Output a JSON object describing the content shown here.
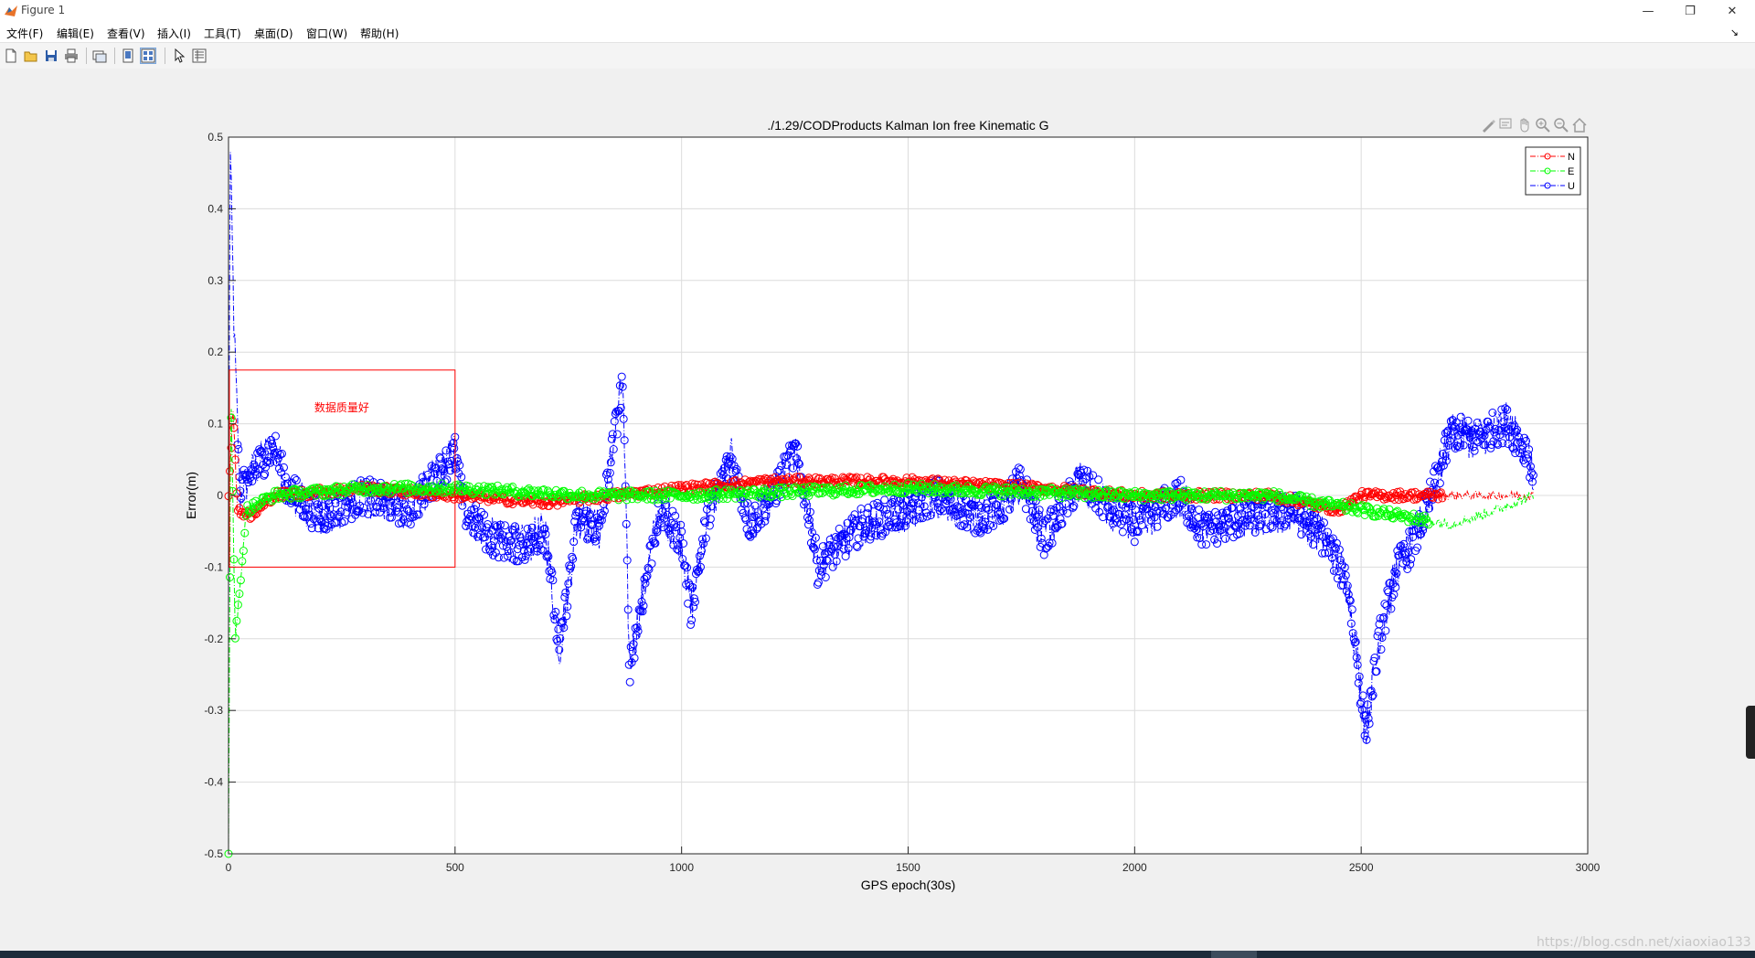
{
  "window": {
    "title": "Figure 1",
    "controls": {
      "minimize": "—",
      "restore": "❐",
      "close": "✕"
    }
  },
  "menu": {
    "items": [
      "文件(F)",
      "编辑(E)",
      "查看(V)",
      "插入(I)",
      "工具(T)",
      "桌面(D)",
      "窗口(W)",
      "帮助(H)"
    ],
    "dock_arrow": "↘"
  },
  "toolbar": {
    "buttons": [
      "new-figure-icon",
      "open-file-icon",
      "save-icon",
      "print-icon",
      "link-plot-icon",
      "hide-plot-tools-icon",
      "show-plot-tools-icon",
      "edit-plot-arrow-icon",
      "property-inspector-icon"
    ]
  },
  "axes_toolbar": {
    "buttons": [
      "brush-icon",
      "data-tips-icon",
      "pan-hand-icon",
      "zoom-in-icon",
      "zoom-out-icon",
      "home-icon"
    ]
  },
  "colors": {
    "N": "#ff0000",
    "E": "#00ff00",
    "U": "#0000ff",
    "annotation": "#ff0000",
    "grid": "#dcdcdc"
  },
  "chart_data": {
    "type": "line",
    "title": "./1.29/CODProducts Kalman Ion free Kinematic G",
    "xlabel": "GPS epoch(30s)",
    "ylabel": "Error(m)",
    "xlim": [
      0,
      3000
    ],
    "ylim": [
      -0.5,
      0.5
    ],
    "xticks": [
      0,
      500,
      1000,
      1500,
      2000,
      2500,
      3000
    ],
    "yticks": [
      -0.5,
      -0.4,
      -0.3,
      -0.2,
      -0.1,
      0,
      0.1,
      0.2,
      0.3,
      0.4,
      0.5
    ],
    "xtick_labels": [
      "0",
      "500",
      "1000",
      "1500",
      "2000",
      "2500",
      "3000"
    ],
    "ytick_labels": [
      "-0.5",
      "-0.4",
      "-0.3",
      "-0.2",
      "-0.1",
      "0",
      "0.1",
      "0.2",
      "0.3",
      "0.4",
      "0.5"
    ],
    "grid": true,
    "legend_position": "top-right",
    "legend": [
      "N",
      "E",
      "U"
    ],
    "series": [
      {
        "name": "N",
        "marker": "circle",
        "line": "dash-dot",
        "envelope": [
          [
            0,
            0
          ],
          [
            10,
            0.12
          ],
          [
            20,
            -0.02
          ],
          [
            50,
            -0.03
          ],
          [
            100,
            0.0
          ],
          [
            300,
            0.01
          ],
          [
            500,
            0.0
          ],
          [
            700,
            -0.01
          ],
          [
            1000,
            0.01
          ],
          [
            1200,
            0.02
          ],
          [
            1500,
            0.02
          ],
          [
            1800,
            0.01
          ],
          [
            2000,
            0.0
          ],
          [
            2300,
            0.0
          ],
          [
            2450,
            -0.02
          ],
          [
            2500,
            0.0
          ],
          [
            2600,
            0.0
          ],
          [
            2700,
            0.0
          ],
          [
            2800,
            0.0
          ],
          [
            2880,
            0.0
          ]
        ],
        "marker_end": 2680
      },
      {
        "name": "E",
        "marker": "circle",
        "line": "dash-dot",
        "envelope": [
          [
            0,
            -0.5
          ],
          [
            5,
            0.15
          ],
          [
            15,
            -0.2
          ],
          [
            40,
            -0.02
          ],
          [
            100,
            0.0
          ],
          [
            300,
            0.01
          ],
          [
            500,
            0.01
          ],
          [
            800,
            0.0
          ],
          [
            1000,
            0.0
          ],
          [
            1500,
            0.01
          ],
          [
            2000,
            0.0
          ],
          [
            2300,
            0.0
          ],
          [
            2500,
            -0.02
          ],
          [
            2600,
            -0.03
          ],
          [
            2700,
            -0.04
          ],
          [
            2800,
            -0.02
          ],
          [
            2880,
            0.0
          ]
        ],
        "marker_end": 2650
      },
      {
        "name": "U",
        "marker": "circle",
        "line": "dash-dot",
        "envelope": [
          [
            0,
            -0.2
          ],
          [
            3,
            0.5
          ],
          [
            12,
            0.24
          ],
          [
            25,
            0.0
          ],
          [
            50,
            0.03
          ],
          [
            100,
            0.07
          ],
          [
            130,
            0.01
          ],
          [
            200,
            -0.03
          ],
          [
            300,
            0.0
          ],
          [
            400,
            -0.02
          ],
          [
            500,
            0.06
          ],
          [
            520,
            -0.02
          ],
          [
            580,
            -0.06
          ],
          [
            650,
            -0.07
          ],
          [
            700,
            -0.05
          ],
          [
            730,
            -0.22
          ],
          [
            770,
            -0.03
          ],
          [
            820,
            -0.05
          ],
          [
            870,
            0.16
          ],
          [
            885,
            -0.24
          ],
          [
            950,
            -0.02
          ],
          [
            1000,
            -0.06
          ],
          [
            1020,
            -0.16
          ],
          [
            1060,
            -0.02
          ],
          [
            1110,
            0.05
          ],
          [
            1150,
            -0.04
          ],
          [
            1200,
            0.0
          ],
          [
            1250,
            0.06
          ],
          [
            1280,
            -0.02
          ],
          [
            1300,
            -0.1
          ],
          [
            1400,
            -0.04
          ],
          [
            1500,
            -0.02
          ],
          [
            1560,
            0.0
          ],
          [
            1650,
            -0.03
          ],
          [
            1700,
            -0.02
          ],
          [
            1750,
            0.02
          ],
          [
            1800,
            -0.06
          ],
          [
            1880,
            0.02
          ],
          [
            1950,
            -0.02
          ],
          [
            2000,
            -0.04
          ],
          [
            2100,
            0.0
          ],
          [
            2150,
            -0.05
          ],
          [
            2250,
            -0.03
          ],
          [
            2350,
            -0.02
          ],
          [
            2420,
            -0.06
          ],
          [
            2470,
            -0.12
          ],
          [
            2510,
            -0.33
          ],
          [
            2540,
            -0.2
          ],
          [
            2580,
            -0.1
          ],
          [
            2620,
            -0.06
          ],
          [
            2660,
            0.01
          ],
          [
            2700,
            0.09
          ],
          [
            2750,
            0.08
          ],
          [
            2820,
            0.1
          ],
          [
            2870,
            0.06
          ],
          [
            2880,
            0.01
          ]
        ],
        "marker_end": 2880
      }
    ],
    "annotation": {
      "text": "数据质量好",
      "type": "rectangle",
      "x_range": [
        0,
        500
      ],
      "y_range": [
        -0.1,
        0.175
      ]
    }
  },
  "watermark": "https://blog.csdn.net/xiaoxiao133"
}
